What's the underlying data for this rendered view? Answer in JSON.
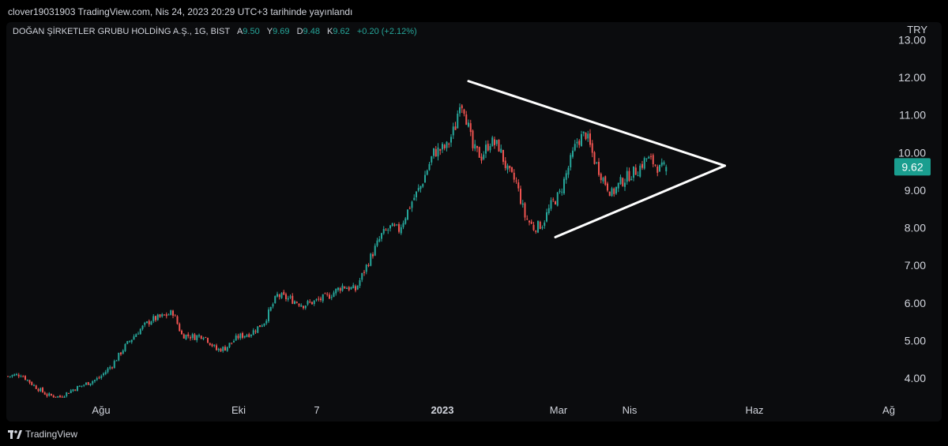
{
  "header": {
    "publish_line": "clover19031903 TradingView.com, Nis 24, 2023 20:29 UTC+3 tarihinde yayınlandı"
  },
  "legend": {
    "symbol": "DOĞAN ŞİRKETLER GRUBU HOLDİNG A.Ş., 1G, BIST",
    "open_label": "A",
    "open_value": "9.50",
    "high_label": "Y",
    "high_value": "9.69",
    "low_label": "D",
    "low_value": "9.48",
    "close_label": "K",
    "close_value": "9.62",
    "change": "+0.20 (+2.12%)"
  },
  "currency": "TRY",
  "footer": {
    "brand": "TradingView"
  },
  "colors": {
    "up": "#26a69a",
    "down": "#ef5350",
    "background": "#0b0c0e",
    "price_badge": "#1a9e8f",
    "trendline": "#ffffff"
  },
  "chart_data": {
    "type": "candlestick",
    "x_tick_labels": [
      "Ağu",
      "Eki",
      "7",
      "2023",
      "Mar",
      "Nis",
      "Haz",
      "Ağ"
    ],
    "y_tick_labels": [
      "4.00",
      "5.00",
      "6.00",
      "7.00",
      "8.00",
      "9.00",
      "10.00",
      "11.00",
      "12.00",
      "13.00"
    ],
    "ylim": [
      3.5,
      13.1
    ],
    "last_price": "9.62",
    "close_path": [
      [
        0,
        4.05
      ],
      [
        6,
        4.1
      ],
      [
        12,
        3.8
      ],
      [
        18,
        3.55
      ],
      [
        24,
        3.5
      ],
      [
        30,
        3.7
      ],
      [
        36,
        3.85
      ],
      [
        42,
        4.0
      ],
      [
        48,
        4.35
      ],
      [
        54,
        4.85
      ],
      [
        60,
        5.25
      ],
      [
        66,
        5.55
      ],
      [
        72,
        5.65
      ],
      [
        76,
        5.75
      ],
      [
        80,
        5.15
      ],
      [
        86,
        5.1
      ],
      [
        90,
        5.15
      ],
      [
        96,
        4.75
      ],
      [
        100,
        4.8
      ],
      [
        106,
        5.1
      ],
      [
        112,
        5.2
      ],
      [
        118,
        5.5
      ],
      [
        124,
        6.2
      ],
      [
        130,
        6.1
      ],
      [
        136,
        5.95
      ],
      [
        142,
        6.05
      ],
      [
        148,
        6.2
      ],
      [
        154,
        6.45
      ],
      [
        160,
        6.35
      ],
      [
        166,
        7.1
      ],
      [
        172,
        7.8
      ],
      [
        176,
        8.0
      ],
      [
        180,
        7.95
      ],
      [
        186,
        8.7
      ],
      [
        190,
        9.1
      ],
      [
        196,
        10.0
      ],
      [
        202,
        10.15
      ],
      [
        206,
        10.7
      ],
      [
        208,
        11.4
      ],
      [
        210,
        11.2
      ],
      [
        214,
        10.1
      ],
      [
        218,
        9.9
      ],
      [
        222,
        10.3
      ],
      [
        226,
        10.15
      ],
      [
        230,
        9.5
      ],
      [
        234,
        9.2
      ],
      [
        238,
        8.3
      ],
      [
        242,
        8.0
      ],
      [
        246,
        8.1
      ],
      [
        250,
        8.6
      ],
      [
        254,
        8.9
      ],
      [
        258,
        9.6
      ],
      [
        262,
        10.3
      ],
      [
        266,
        10.5
      ],
      [
        270,
        9.8
      ],
      [
        274,
        9.3
      ],
      [
        278,
        8.9
      ],
      [
        282,
        9.2
      ],
      [
        286,
        9.4
      ],
      [
        290,
        9.55
      ],
      [
        294,
        9.85
      ],
      [
        298,
        9.7
      ],
      [
        300,
        9.55
      ],
      [
        303,
        9.62
      ]
    ],
    "trendline_upper": [
      [
        212,
        11.9
      ],
      [
        330,
        9.65
      ]
    ],
    "trendline_lower": [
      [
        252,
        7.75
      ],
      [
        330,
        9.65
      ]
    ]
  }
}
